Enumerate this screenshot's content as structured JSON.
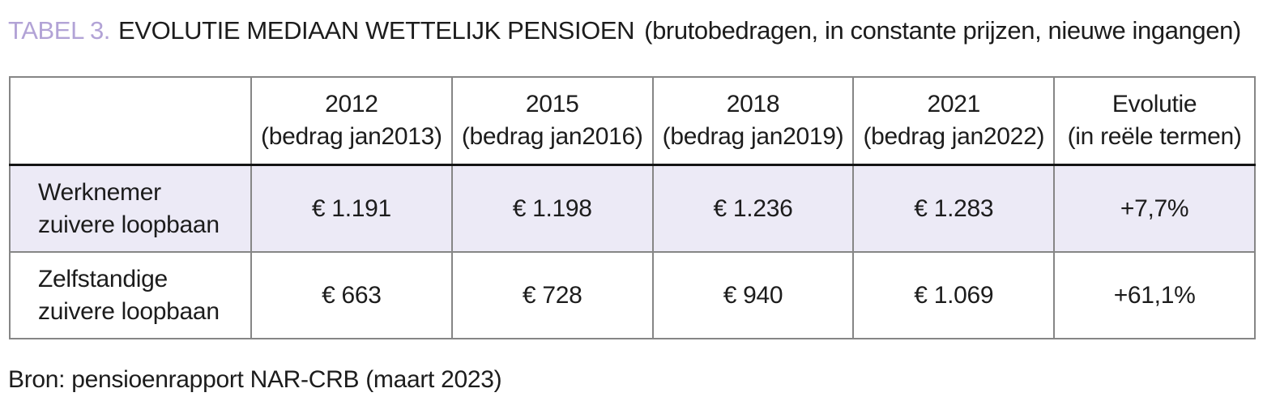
{
  "title": {
    "label": "TABEL 3.",
    "text": "EVOLUTIE MEDIAAN WETTELIJK PENSIOEN",
    "subtitle": "(brutobedragen, in constante prijzen, nieuwe ingangen)"
  },
  "table": {
    "headers": [
      {
        "line1": "",
        "line2": ""
      },
      {
        "line1": "2012",
        "line2": "(bedrag jan2013)"
      },
      {
        "line1": "2015",
        "line2": "(bedrag jan2016)"
      },
      {
        "line1": "2018",
        "line2": "(bedrag jan2019)"
      },
      {
        "line1": "2021",
        "line2": "(bedrag jan2022)"
      },
      {
        "line1": "Evolutie",
        "line2": "(in reële termen)"
      }
    ],
    "rows": [
      {
        "label_line1": "Werknemer",
        "label_line2": "zuivere loopbaan",
        "values": [
          "€ 1.191",
          "€ 1.198",
          "€ 1.236",
          "€ 1.283",
          "+7,7%"
        ],
        "highlighted": true
      },
      {
        "label_line1": "Zelfstandige",
        "label_line2": "zuivere loopbaan",
        "values": [
          "€ 663",
          "€ 728",
          "€ 940",
          "€ 1.069",
          "+61,1%"
        ],
        "highlighted": false
      }
    ]
  },
  "source": "Bron: pensioenrapport NAR-CRB (maart 2023)",
  "colors": {
    "label_purple": "#b2a3d6",
    "row_highlight": "#eceaf6",
    "border_gray": "#868686",
    "border_dark": "#141414",
    "text": "#1c1c1c"
  }
}
